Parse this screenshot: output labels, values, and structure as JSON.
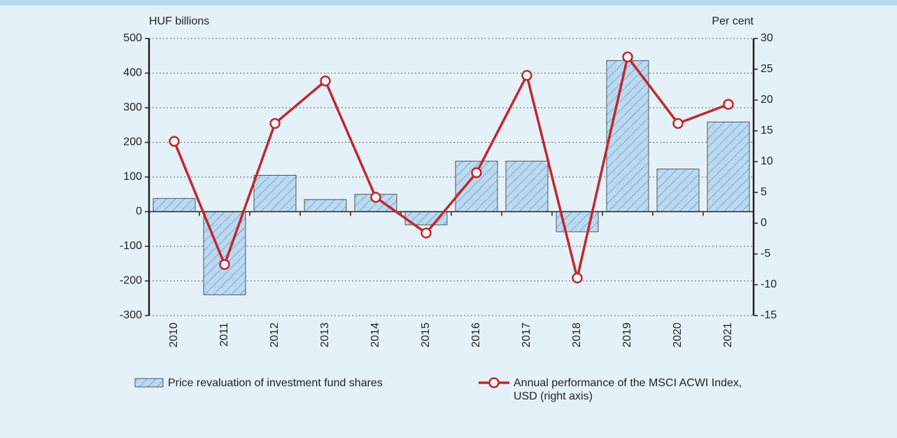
{
  "chart_data": {
    "type": "bar_line",
    "y_label": "HUF billions",
    "y2_label": "Per cent",
    "categories": [
      "2010",
      "2011",
      "2012",
      "2013",
      "2014",
      "2015",
      "2016",
      "2017",
      "2018",
      "2019",
      "2020",
      "2021"
    ],
    "series": [
      {
        "name": "Price revaluation of investment fund shares",
        "type": "bar",
        "color": "#bcd9ef",
        "hatch_color": "#5b9bd5",
        "values": [
          38,
          -240,
          105,
          35,
          50,
          -38,
          146,
          146,
          -58,
          436,
          123,
          259
        ]
      },
      {
        "name": "Annual performance of the MSCI ACWI Index, USD (right axis)",
        "type": "line",
        "axis": "y2",
        "color": "#c0282d",
        "values": [
          13.3,
          -6.7,
          16.2,
          23.1,
          4.2,
          -1.6,
          8.2,
          24.0,
          -8.9,
          27.0,
          16.2,
          19.3
        ]
      }
    ],
    "ylim": [
      -300,
      500
    ],
    "yticks": [
      -300,
      -200,
      -100,
      0,
      100,
      200,
      300,
      400,
      500
    ],
    "y2lim": [
      -15,
      30
    ],
    "y2ticks": [
      -15,
      -10,
      -5,
      0,
      5,
      10,
      15,
      20,
      25,
      30
    ],
    "grid": true
  }
}
